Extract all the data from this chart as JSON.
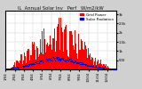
{
  "title": "IL  Annual Solar Inv   Perf   W/m2/kW",
  "legend_labels": [
    "Grid Power",
    "Solar Radiation"
  ],
  "legend_colors": [
    "#ff0000",
    "#0000cc"
  ],
  "bg_color": "#d0d0d0",
  "plot_bg": "#ffffff",
  "bar_color": "#ff0000",
  "dot_color": "#0000cc",
  "grid_color": "#aaaaaa",
  "ylim": [
    0,
    3200
  ],
  "yticks": [
    500,
    1000,
    1500,
    2000,
    2500,
    3000
  ],
  "ytick_labels": [
    "500",
    "1k",
    "1.5k",
    "2k",
    "2.5k",
    "3k"
  ],
  "num_points": 365,
  "peak_day": 172,
  "peak_value": 3100,
  "title_fontsize": 3.8,
  "tick_fontsize": 2.8,
  "legend_fontsize": 3.0,
  "month_days": [
    0,
    31,
    59,
    90,
    120,
    151,
    181,
    212,
    243,
    273,
    304,
    334
  ],
  "month_labels": [
    "1/04",
    "2/04",
    "3/04",
    "4/04",
    "5/04",
    "6/04",
    "7/04",
    "8/04",
    "9/04",
    "10/04",
    "11/04",
    "12/04"
  ]
}
